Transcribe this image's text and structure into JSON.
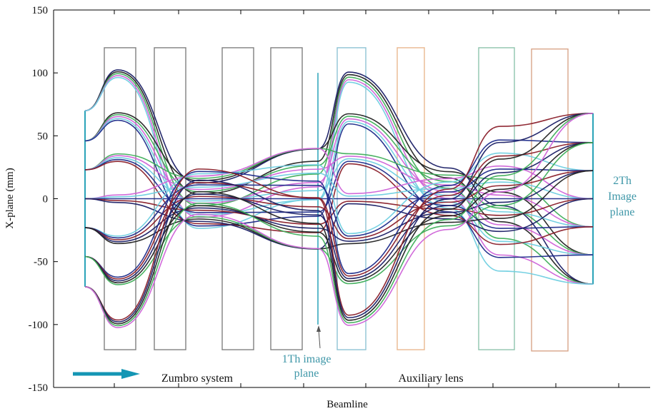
{
  "chart_data": {
    "type": "line",
    "title": "",
    "xlabel": "Beamline",
    "ylabel": "X-plane (mm)",
    "ylim": [
      -150,
      150
    ],
    "yticks": [
      150,
      100,
      50,
      0,
      -50,
      -100,
      -150
    ],
    "grid": false,
    "annotations": {
      "first_image_plane": [
        "1Th image",
        "plane"
      ],
      "second_image_plane": [
        "2Th",
        "Image",
        "plane"
      ],
      "system": "Zumbro system",
      "auxiliary": "Auxiliary lens"
    },
    "elements": [
      {
        "kind": "lens",
        "color": "#808080",
        "y_range": [
          -120,
          120
        ]
      },
      {
        "kind": "lens",
        "color": "#808080",
        "y_range": [
          -120,
          120
        ]
      },
      {
        "kind": "lens",
        "color": "#808080",
        "y_range": [
          -120,
          120
        ]
      },
      {
        "kind": "lens",
        "color": "#808080",
        "y_range": [
          -120,
          120
        ]
      },
      {
        "kind": "lens",
        "color": "#8ec3d4",
        "y_range": [
          -120,
          120
        ]
      },
      {
        "kind": "lens",
        "color": "#e9b890",
        "y_range": [
          -120,
          120
        ]
      },
      {
        "kind": "lens",
        "color": "#8fc4ad",
        "y_range": [
          -120,
          120
        ]
      },
      {
        "kind": "lens",
        "color": "#d9a58a",
        "y_range": [
          -121,
          119
        ]
      }
    ],
    "object_plane": {
      "y_range": [
        -70,
        70
      ]
    },
    "image_plane_1": {
      "y_range": [
        -100,
        100
      ]
    },
    "image_plane_2": {
      "y_range": [
        -68,
        68
      ]
    },
    "ray_starts_mm": [
      70,
      46,
      23,
      0,
      -23,
      -46,
      -70
    ],
    "ray_colors": [
      "#1a1f66",
      "#222222",
      "#3fae5a",
      "#cf63d8",
      "#6fcfe0",
      "#1d2b8a",
      "#8a1f2a"
    ],
    "colors": {
      "beam_arrow": "#1496b4",
      "annotation": "#3f97a8",
      "axes": "#000000"
    }
  }
}
